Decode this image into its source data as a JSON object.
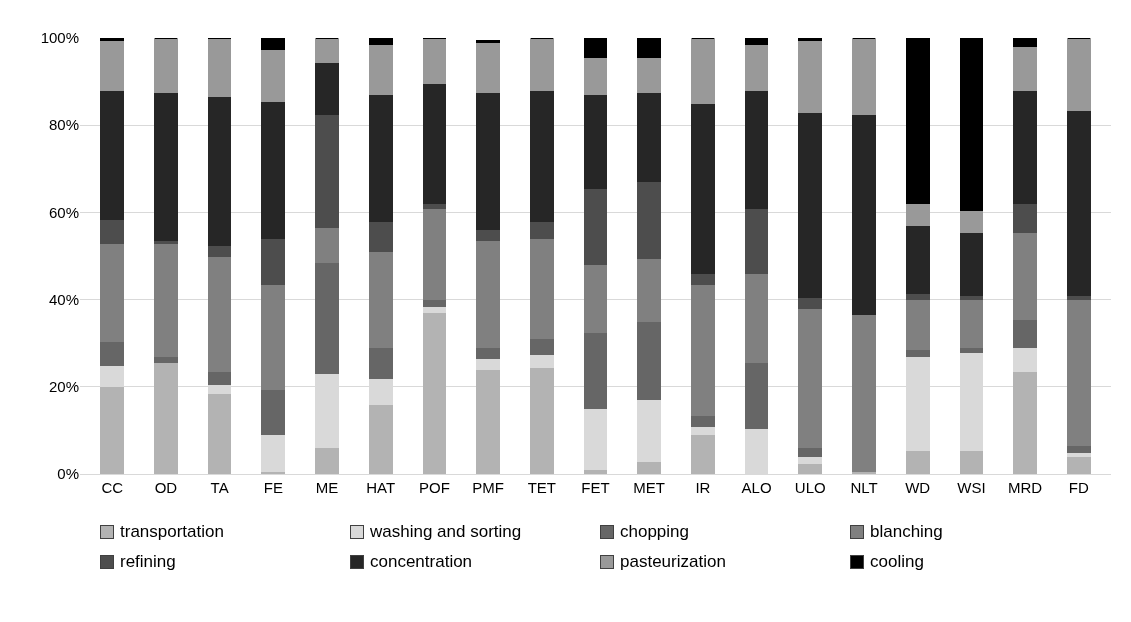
{
  "chart_data": {
    "type": "bar",
    "stacked": true,
    "categories": [
      "CC",
      "OD",
      "TA",
      "FE",
      "ME",
      "HAT",
      "POF",
      "PMF",
      "TET",
      "FET",
      "MET",
      "IR",
      "ALO",
      "ULO",
      "NLT",
      "WD",
      "WSI",
      "MRD",
      "FD"
    ],
    "series": [
      {
        "name": "transportation",
        "color": "#b3b3b3",
        "values": [
          20,
          25.5,
          18.5,
          0.5,
          6,
          16,
          37,
          24,
          24.5,
          1,
          3,
          9,
          0,
          2.5,
          0.5,
          5.5,
          5.5,
          23.5,
          4
        ]
      },
      {
        "name": "washing and sorting",
        "color": "#d9d9d9",
        "values": [
          5,
          0,
          2,
          8.5,
          17,
          6,
          1.5,
          2.5,
          3,
          14,
          14,
          2,
          10.5,
          1.5,
          0,
          21.5,
          22.5,
          5.5,
          1
        ]
      },
      {
        "name": "chopping",
        "color": "#666666",
        "values": [
          5.5,
          1.5,
          3,
          10.5,
          25.5,
          7,
          1.5,
          2.5,
          3.5,
          17.5,
          18,
          2.5,
          15,
          2,
          0,
          1.5,
          1,
          6.5,
          1.5
        ]
      },
      {
        "name": "blanching",
        "color": "#808080",
        "values": [
          22.5,
          26,
          26.5,
          24,
          8,
          22,
          21,
          24.5,
          23,
          15.5,
          14.5,
          30,
          20.5,
          32,
          36,
          11.5,
          11,
          20,
          33.5
        ]
      },
      {
        "name": "refining",
        "color": "#4d4d4d",
        "values": [
          5.5,
          0.5,
          2.5,
          10.5,
          26,
          7,
          1,
          2.5,
          4,
          17.5,
          17.5,
          2.5,
          15,
          2.5,
          0,
          1.5,
          1,
          6.5,
          1
        ]
      },
      {
        "name": "concentration",
        "color": "#262626",
        "values": [
          29.5,
          34,
          34,
          31.5,
          12,
          29,
          27.5,
          31.5,
          30,
          21.5,
          20.5,
          39,
          27,
          42.5,
          46,
          15.5,
          14.5,
          26,
          42.5
        ]
      },
      {
        "name": "pasteurization",
        "color": "#999999",
        "values": [
          11.5,
          12.5,
          13.5,
          12,
          5.5,
          11.5,
          10.5,
          11.5,
          12,
          8.5,
          8,
          15,
          10.5,
          16.5,
          17.5,
          5,
          5,
          10,
          16.5
        ]
      },
      {
        "name": "cooling",
        "color": "#000000",
        "values": [
          0.5,
          0,
          0,
          2.5,
          0,
          1.5,
          0,
          0.5,
          0,
          4.5,
          4.5,
          0,
          1.5,
          0.5,
          0,
          38,
          39.5,
          2,
          0
        ]
      }
    ],
    "ylim": [
      0,
      100
    ],
    "yticks": [
      {
        "value": 0,
        "label": "0%"
      },
      {
        "value": 20,
        "label": "20%"
      },
      {
        "value": 40,
        "label": "40%"
      },
      {
        "value": 60,
        "label": "60%"
      },
      {
        "value": 80,
        "label": "80%"
      },
      {
        "value": 100,
        "label": "100%"
      }
    ],
    "grid": "y",
    "legend": "bottom"
  }
}
